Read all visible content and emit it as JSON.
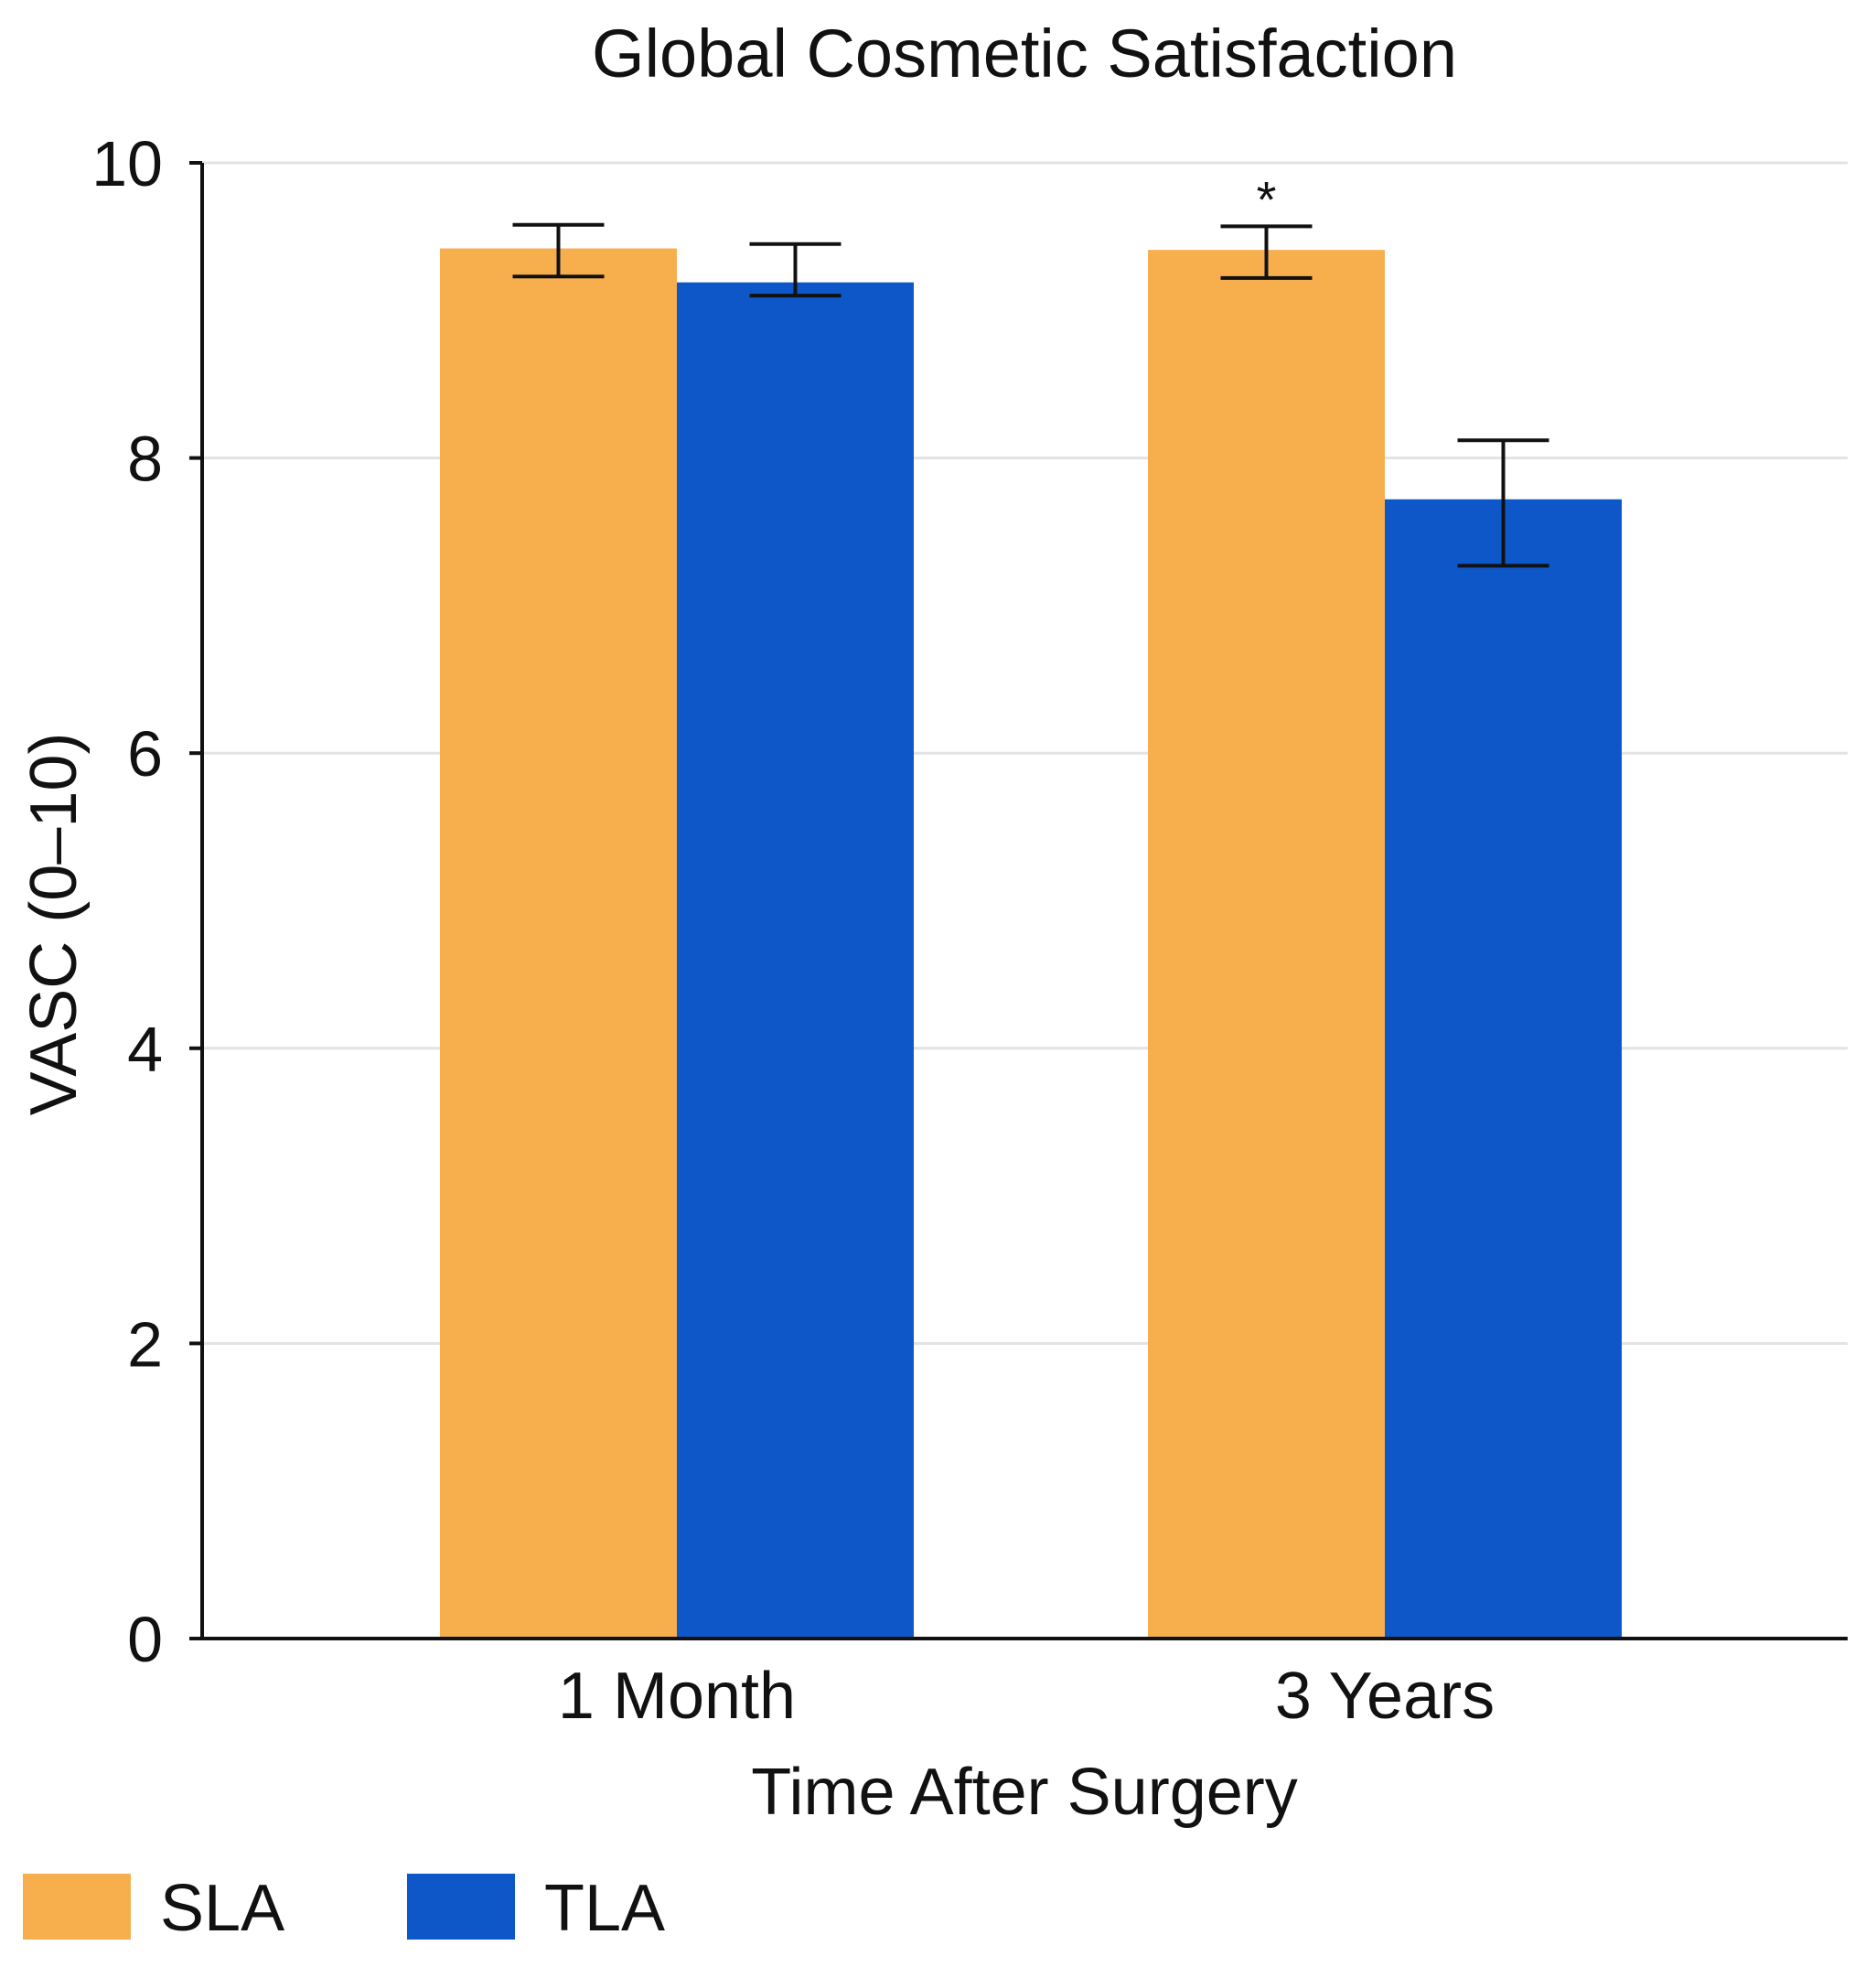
{
  "chart_data": {
    "type": "bar",
    "title": "Global Cosmetic Satisfaction",
    "xlabel": "Time After Surgery",
    "ylabel": "VASC (0–10)",
    "ylim": [
      0,
      10
    ],
    "yticks": [
      "0",
      "2",
      "4",
      "6",
      "8",
      "10"
    ],
    "grid": true,
    "legend_position": "bottom-left",
    "categories": [
      "1 Month",
      "3 Years"
    ],
    "series": [
      {
        "name": "SLA",
        "color": "#F7AF4E",
        "values": [
          9.42,
          9.41
        ],
        "error_low": [
          9.23,
          9.22
        ],
        "error_high": [
          9.58,
          9.57
        ]
      },
      {
        "name": "TLA",
        "color": "#0E57C8",
        "values": [
          9.19,
          7.72
        ],
        "error_low": [
          9.1,
          7.27
        ],
        "error_high": [
          9.45,
          8.12
        ]
      }
    ],
    "annotations": [
      {
        "text": "*",
        "category": "3 Years",
        "series": "SLA"
      }
    ]
  }
}
